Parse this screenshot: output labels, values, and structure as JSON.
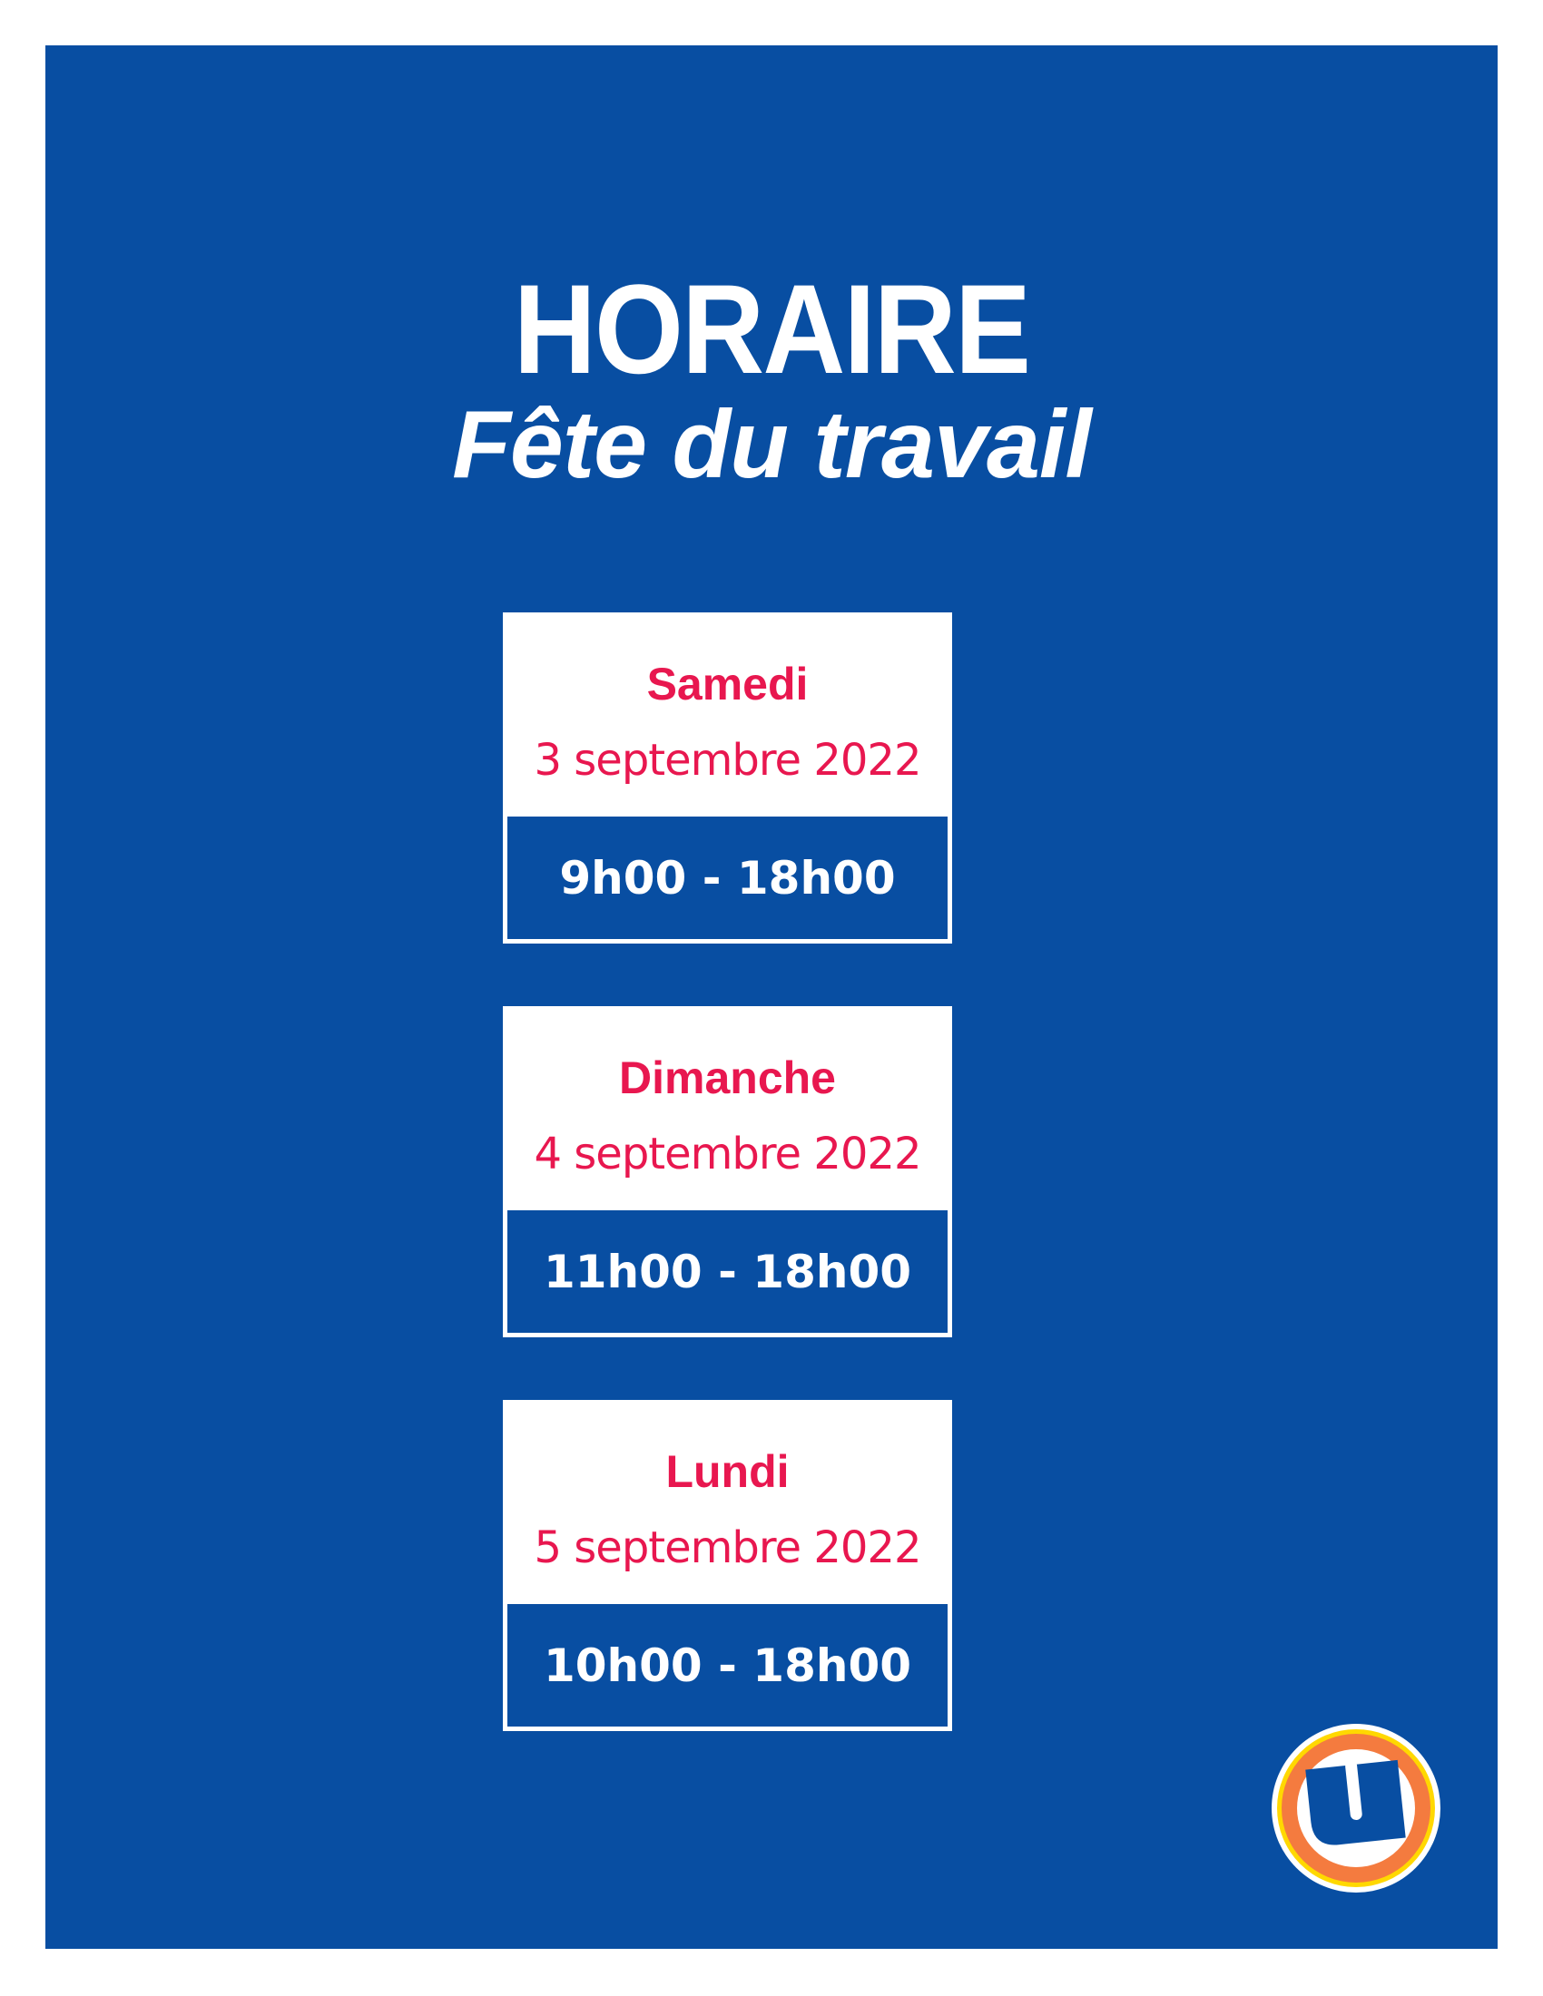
{
  "header": {
    "title": "HORAIRE",
    "subtitle": "Fête du travail"
  },
  "schedule": [
    {
      "day": "Samedi",
      "date": "3 septembre 2022",
      "hours": "9h00 - 18h00"
    },
    {
      "day": "Dimanche",
      "date": "4 septembre 2022",
      "hours": "11h00 - 18h00"
    },
    {
      "day": "Lundi",
      "date": "5 septembre 2022",
      "hours": "10h00 - 18h00"
    }
  ],
  "logo": {
    "text": "U",
    "colors": {
      "ring": "#f47b3f",
      "outer_ring": "#ffd800",
      "letter": "#084ea2"
    }
  },
  "colors": {
    "background": "#084ea2",
    "accent": "#e8174f"
  }
}
